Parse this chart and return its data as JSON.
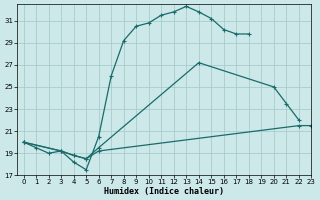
{
  "xlabel": "Humidex (Indice chaleur)",
  "bg_color": "#cce8e8",
  "grid_color": "#aacccc",
  "line_color": "#1a6b6b",
  "xlim": [
    -0.5,
    23
  ],
  "ylim": [
    17,
    32.5
  ],
  "yticks": [
    17,
    19,
    21,
    23,
    25,
    27,
    29,
    31
  ],
  "xticks": [
    0,
    1,
    2,
    3,
    4,
    5,
    6,
    7,
    8,
    9,
    10,
    11,
    12,
    13,
    14,
    15,
    16,
    17,
    18,
    19,
    20,
    21,
    22,
    23
  ],
  "curve_top_x": [
    0,
    1,
    2,
    3,
    4,
    5,
    6,
    7,
    8,
    9,
    10,
    11,
    12,
    13,
    14,
    15,
    16,
    17,
    18
  ],
  "curve_top_y": [
    20.0,
    19.5,
    19.0,
    19.2,
    18.2,
    17.5,
    20.5,
    26.0,
    29.2,
    30.5,
    30.8,
    31.5,
    31.8,
    32.3,
    31.8,
    31.2,
    30.2,
    29.8,
    29.8
  ],
  "curve_mid_x": [
    0,
    3,
    4,
    5,
    6,
    14,
    20,
    21,
    22
  ],
  "curve_mid_y": [
    20.0,
    19.2,
    18.8,
    18.5,
    19.5,
    27.2,
    25.0,
    23.5,
    22.0
  ],
  "curve_bot_x": [
    0,
    3,
    4,
    5,
    6,
    22,
    23
  ],
  "curve_bot_y": [
    20.0,
    19.2,
    18.8,
    18.5,
    19.2,
    21.5,
    21.5
  ]
}
